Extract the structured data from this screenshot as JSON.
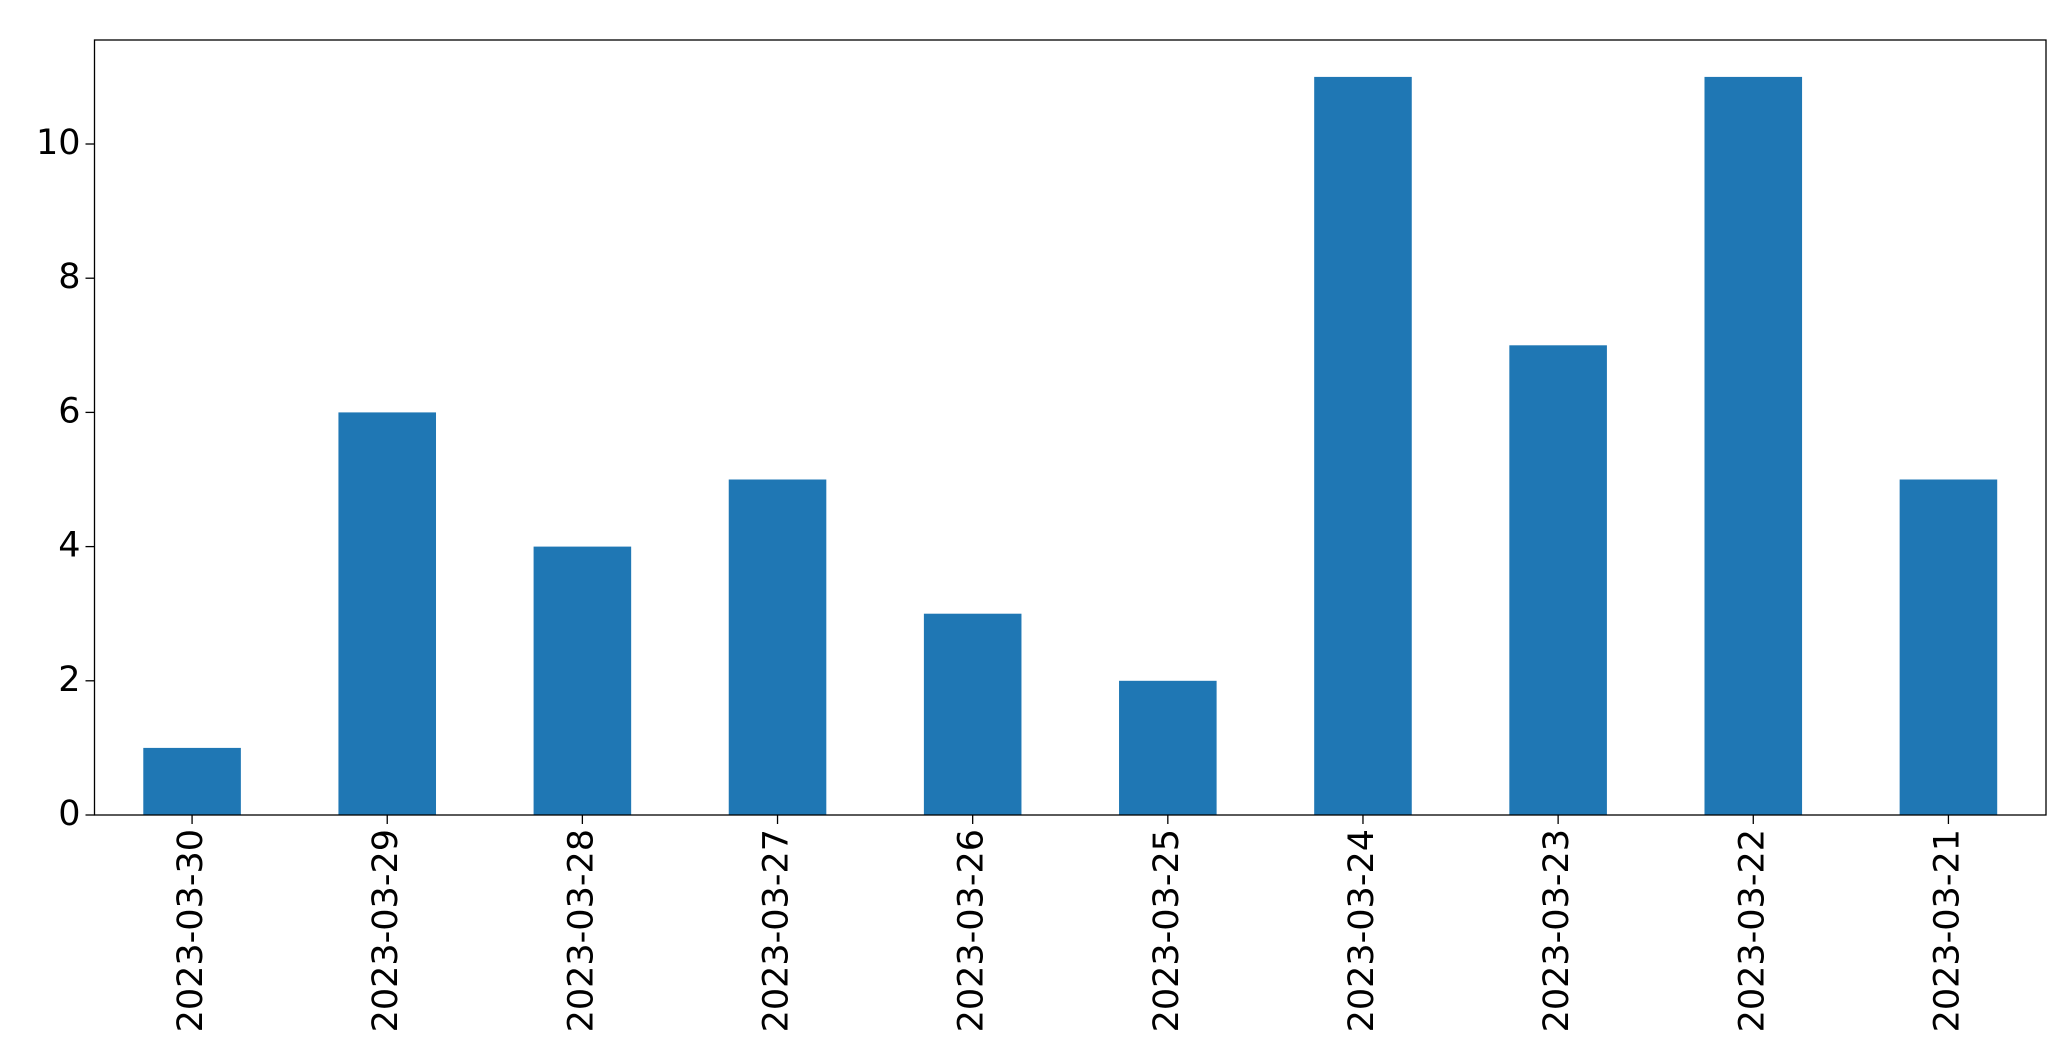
{
  "chart_data": {
    "type": "bar",
    "categories": [
      "2023-03-30",
      "2023-03-29",
      "2023-03-28",
      "2023-03-27",
      "2023-03-26",
      "2023-03-25",
      "2023-03-24",
      "2023-03-23",
      "2023-03-22",
      "2023-03-21"
    ],
    "values": [
      1,
      6,
      4,
      5,
      3,
      2,
      11,
      7,
      11,
      5
    ],
    "color": "#1f77b4",
    "ylim": [
      0,
      11.55
    ],
    "yticks": [
      0,
      2,
      4,
      6,
      8,
      10
    ],
    "grid": false
  }
}
